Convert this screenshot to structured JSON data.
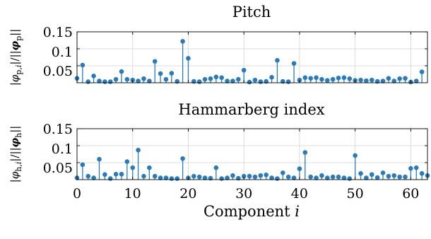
{
  "chart_data": [
    {
      "type": "stem",
      "title": "Pitch",
      "ylabel": "|φ_{p,i}|/||φ_p||",
      "xlabel": "",
      "xlim": [
        0,
        63
      ],
      "ylim": [
        0,
        0.15
      ],
      "xticks": [
        "0",
        "10",
        "20",
        "30",
        "40",
        "50",
        "60"
      ],
      "yticks": [
        "0.05",
        "0.1",
        "0.15"
      ],
      "grid": true,
      "color": "#2b7bba",
      "values": [
        0.013,
        0.052,
        0.003,
        0.02,
        0.005,
        0.003,
        0.003,
        0.01,
        0.033,
        0.01,
        0.008,
        0.005,
        0.012,
        0.005,
        0.063,
        0.027,
        0.01,
        0.028,
        0.004,
        0.122,
        0.072,
        0.004,
        0.003,
        0.01,
        0.012,
        0.017,
        0.015,
        0.005,
        0.005,
        0.01,
        0.037,
        0.002,
        0.008,
        0.003,
        0.004,
        0.016,
        0.066,
        0.004,
        0.003,
        0.057,
        0.008,
        0.015,
        0.013,
        0.015,
        0.01,
        0.007,
        0.01,
        0.014,
        0.015,
        0.012,
        0.007,
        0.008,
        0.006,
        0.008,
        0.004,
        0.005,
        0.013,
        0.005,
        0.012,
        0.013,
        0.002,
        0.005,
        0.032
      ]
    },
    {
      "type": "stem",
      "title": "Hammarberg index",
      "ylabel": "|φ_{h,i}|/||φ_h||",
      "xlabel": "Component i",
      "xlim": [
        0,
        63
      ],
      "ylim": [
        0,
        0.15
      ],
      "xticks": [
        "0",
        "10",
        "20",
        "30",
        "40",
        "50",
        "60"
      ],
      "yticks": [
        "0.05",
        "0.1",
        "0.15"
      ],
      "grid": true,
      "color": "#2b7bba",
      "values": [
        0.005,
        0.044,
        0.01,
        0.005,
        0.06,
        0.015,
        0.003,
        0.016,
        0.016,
        0.053,
        0.035,
        0.087,
        0.01,
        0.035,
        0.01,
        0.005,
        0.005,
        0.003,
        0.003,
        0.062,
        0.005,
        0.01,
        0.008,
        0.005,
        0.004,
        0.035,
        0.003,
        0.005,
        0.012,
        0.004,
        0.01,
        0.01,
        0.008,
        0.012,
        0.014,
        0.005,
        0.003,
        0.02,
        0.008,
        0.005,
        0.032,
        0.08,
        0.008,
        0.005,
        0.012,
        0.005,
        0.008,
        0.008,
        0.005,
        0.003,
        0.071,
        0.018,
        0.005,
        0.015,
        0.006,
        0.02,
        0.01,
        0.012,
        0.008,
        0.008,
        0.033,
        0.035,
        0.018,
        0.012
      ]
    }
  ]
}
